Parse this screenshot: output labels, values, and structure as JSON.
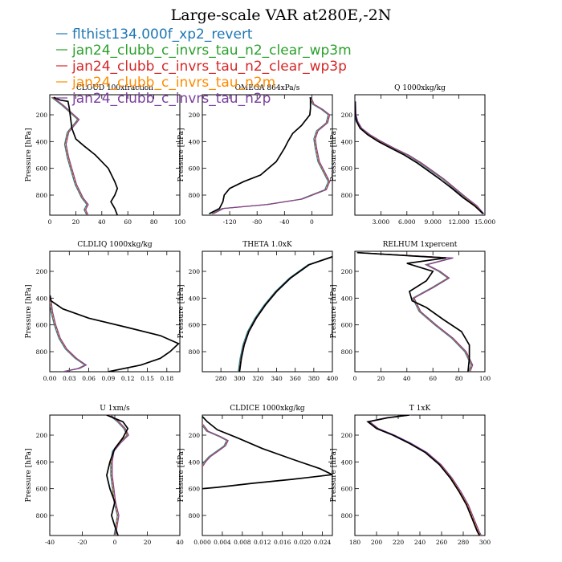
{
  "figure": {
    "title": "Large-scale VAR at280E,-2N",
    "legend": [
      {
        "name": "flthist134.000f_xp2_revert",
        "color": "#1f77b4",
        "dash": "solid"
      },
      {
        "name": "jan24_clubb_c_invrs_tau_n2_clear_wp3m",
        "color": "#2ca02c",
        "dash": "dashed"
      },
      {
        "name": "jan24_clubb_c_invrs_tau_n2_clear_wp3p",
        "color": "#d62728",
        "dash": "dashed"
      },
      {
        "name": "jan24_clubb_c_invrs_tau_n2m",
        "color": "#ff8c00",
        "dash": "solid"
      },
      {
        "name": "jan24_clubb_c_invrs_tau_n2p",
        "color": "#7b3f9e",
        "dash": "solid"
      }
    ],
    "black_series_color": "#000000"
  },
  "chart_data": [
    {
      "type": "line",
      "title": "CLOUD 100xfraction",
      "ylabel": "Pressure [hPa]",
      "xlim": [
        0,
        100
      ],
      "ylim": [
        950,
        50
      ],
      "xticks": [
        0,
        20,
        40,
        60,
        80,
        100
      ],
      "xtick_labels": [
        "0",
        "20",
        "40",
        "60",
        "80",
        "100"
      ],
      "yticks": [
        200,
        400,
        600,
        800
      ],
      "ytick_labels": [
        "200",
        "400",
        "600",
        "800"
      ],
      "black": [
        [
          3,
          70
        ],
        [
          8,
          90
        ],
        [
          14,
          100
        ],
        [
          15,
          150
        ],
        [
          17,
          300
        ],
        [
          20,
          380
        ],
        [
          26,
          430
        ],
        [
          35,
          500
        ],
        [
          45,
          600
        ],
        [
          50,
          700
        ],
        [
          52,
          750
        ],
        [
          50,
          800
        ],
        [
          47,
          850
        ],
        [
          50,
          900
        ],
        [
          52,
          950
        ]
      ],
      "colored": [
        [
          2,
          70
        ],
        [
          10,
          130
        ],
        [
          18,
          200
        ],
        [
          22,
          235
        ],
        [
          20,
          260
        ],
        [
          14,
          330
        ],
        [
          12,
          420
        ],
        [
          14,
          520
        ],
        [
          17,
          620
        ],
        [
          20,
          720
        ],
        [
          25,
          820
        ],
        [
          29,
          870
        ],
        [
          27,
          910
        ],
        [
          29,
          950
        ]
      ]
    },
    {
      "type": "line",
      "title": "OMEGA  864xPa/s",
      "ylabel": "Pressure [hPa]",
      "xlim": [
        -160,
        30
      ],
      "ylim": [
        950,
        50
      ],
      "xticks": [
        -120,
        -80,
        -40,
        0
      ],
      "xtick_labels": [
        "-120",
        "-80",
        "-40",
        "0"
      ],
      "yticks": [
        200,
        400,
        600,
        800
      ],
      "ytick_labels": [
        "200",
        "400",
        "600",
        "800"
      ],
      "black": [
        [
          -2,
          70
        ],
        [
          -2,
          150
        ],
        [
          -3,
          200
        ],
        [
          -15,
          280
        ],
        [
          -28,
          340
        ],
        [
          -35,
          400
        ],
        [
          -40,
          450
        ],
        [
          -52,
          550
        ],
        [
          -75,
          650
        ],
        [
          -100,
          700
        ],
        [
          -120,
          750
        ],
        [
          -128,
          800
        ],
        [
          -130,
          850
        ],
        [
          -135,
          900
        ],
        [
          -150,
          940
        ]
      ],
      "colored": [
        [
          -2,
          70
        ],
        [
          2,
          120
        ],
        [
          15,
          160
        ],
        [
          25,
          200
        ],
        [
          22,
          260
        ],
        [
          8,
          320
        ],
        [
          4,
          380
        ],
        [
          6,
          450
        ],
        [
          10,
          550
        ],
        [
          20,
          650
        ],
        [
          25,
          700
        ],
        [
          20,
          760
        ],
        [
          -15,
          830
        ],
        [
          -65,
          870
        ],
        [
          -130,
          900
        ],
        [
          -145,
          940
        ]
      ]
    },
    {
      "type": "line",
      "title": "Q  1000xkg/kg",
      "ylabel": "Pressure [hPa]",
      "xlim": [
        0,
        15
      ],
      "ylim": [
        950,
        50
      ],
      "xticks": [
        3,
        6,
        9,
        12,
        15
      ],
      "xtick_labels": [
        "3.000",
        "6.000",
        "9.000",
        "12.000",
        "15.000"
      ],
      "yticks": [
        200,
        400,
        600,
        800
      ],
      "ytick_labels": [
        "200",
        "400",
        "600",
        "800"
      ],
      "black": [
        [
          0.0,
          100
        ],
        [
          0.05,
          200
        ],
        [
          0.2,
          250
        ],
        [
          0.6,
          300
        ],
        [
          1.5,
          350
        ],
        [
          2.7,
          400
        ],
        [
          4.2,
          450
        ],
        [
          5.7,
          500
        ],
        [
          7.2,
          560
        ],
        [
          8.5,
          620
        ],
        [
          9.8,
          680
        ],
        [
          11.2,
          750
        ],
        [
          12.5,
          820
        ],
        [
          13.8,
          880
        ],
        [
          14.8,
          940
        ]
      ],
      "colored": [
        [
          0.0,
          100
        ],
        [
          0.05,
          200
        ],
        [
          0.25,
          250
        ],
        [
          0.7,
          300
        ],
        [
          1.7,
          350
        ],
        [
          3.0,
          400
        ],
        [
          4.5,
          450
        ],
        [
          6.1,
          500
        ],
        [
          7.6,
          560
        ],
        [
          8.9,
          620
        ],
        [
          10.2,
          680
        ],
        [
          11.5,
          750
        ],
        [
          12.8,
          820
        ],
        [
          14.0,
          880
        ],
        [
          14.8,
          940
        ]
      ]
    },
    {
      "type": "line",
      "title": "CLDLIQ  1000xkg/kg",
      "ylabel": "Pressure [hPa]",
      "xlim": [
        0,
        0.2
      ],
      "ylim": [
        950,
        50
      ],
      "xticks": [
        0.0,
        0.03,
        0.06,
        0.09,
        0.12,
        0.15,
        0.18
      ],
      "xtick_labels": [
        "0.00",
        "0.03",
        "0.06",
        "0.09",
        "0.12",
        "0.15",
        "0.18"
      ],
      "yticks": [
        200,
        400,
        600,
        800
      ],
      "ytick_labels": [
        "200",
        "400",
        "600",
        "800"
      ],
      "black": [
        [
          0,
          380
        ],
        [
          0.002,
          420
        ],
        [
          0.02,
          480
        ],
        [
          0.06,
          550
        ],
        [
          0.12,
          620
        ],
        [
          0.17,
          680
        ],
        [
          0.198,
          740
        ],
        [
          0.185,
          800
        ],
        [
          0.17,
          850
        ],
        [
          0.14,
          900
        ],
        [
          0.09,
          950
        ]
      ],
      "colored": [
        [
          0,
          380
        ],
        [
          0.003,
          500
        ],
        [
          0.008,
          600
        ],
        [
          0.015,
          700
        ],
        [
          0.025,
          780
        ],
        [
          0.04,
          850
        ],
        [
          0.055,
          900
        ],
        [
          0.045,
          925
        ],
        [
          0.02,
          950
        ]
      ]
    },
    {
      "type": "line",
      "title": "THETA  1.0xK",
      "ylabel": "Pressure [hPa]",
      "xlim": [
        260,
        400
      ],
      "ylim": [
        950,
        50
      ],
      "xticks": [
        280,
        300,
        320,
        340,
        360,
        380,
        400
      ],
      "xtick_labels": [
        "280",
        "300",
        "320",
        "340",
        "360",
        "380",
        "400"
      ],
      "yticks": [
        200,
        400,
        600,
        800
      ],
      "ytick_labels": [
        "200",
        "400",
        "600",
        "800"
      ],
      "black": [
        [
          300,
          950
        ],
        [
          302,
          850
        ],
        [
          305,
          750
        ],
        [
          310,
          650
        ],
        [
          318,
          550
        ],
        [
          328,
          450
        ],
        [
          340,
          350
        ],
        [
          355,
          250
        ],
        [
          375,
          150
        ],
        [
          400,
          90
        ]
      ],
      "colored": [
        [
          299.5,
          950
        ],
        [
          301.5,
          850
        ],
        [
          304.5,
          750
        ],
        [
          309.5,
          650
        ],
        [
          317.5,
          550
        ],
        [
          327.5,
          450
        ],
        [
          339.5,
          350
        ],
        [
          354.5,
          250
        ],
        [
          374.5,
          150
        ],
        [
          400,
          92
        ]
      ]
    },
    {
      "type": "line",
      "title": "RELHUM  1xpercent",
      "ylabel": "Pressure [hPa]",
      "xlim": [
        0,
        100
      ],
      "ylim": [
        950,
        50
      ],
      "xticks": [
        0,
        20,
        40,
        60,
        80,
        100
      ],
      "xtick_labels": [
        "0",
        "20",
        "40",
        "60",
        "80",
        "100"
      ],
      "yticks": [
        200,
        400,
        600,
        800
      ],
      "ytick_labels": [
        "200",
        "400",
        "600",
        "800"
      ],
      "black": [
        [
          2,
          60
        ],
        [
          70,
          100
        ],
        [
          40,
          140
        ],
        [
          60,
          200
        ],
        [
          55,
          270
        ],
        [
          42,
          350
        ],
        [
          44,
          420
        ],
        [
          55,
          470
        ],
        [
          68,
          560
        ],
        [
          82,
          650
        ],
        [
          88,
          750
        ],
        [
          88,
          850
        ],
        [
          87,
          950
        ]
      ],
      "colored": [
        [
          2,
          60
        ],
        [
          75,
          100
        ],
        [
          55,
          150
        ],
        [
          65,
          200
        ],
        [
          72,
          250
        ],
        [
          60,
          320
        ],
        [
          45,
          400
        ],
        [
          50,
          500
        ],
        [
          62,
          600
        ],
        [
          75,
          700
        ],
        [
          85,
          800
        ],
        [
          90,
          900
        ],
        [
          88,
          950
        ]
      ]
    },
    {
      "type": "line",
      "title": "U  1xm/s",
      "ylabel": "Pressure [hPa]",
      "xlim": [
        -40,
        40
      ],
      "ylim": [
        950,
        50
      ],
      "xticks": [
        -40,
        -20,
        0,
        20,
        40
      ],
      "xtick_labels": [
        "-40",
        "-20",
        "0",
        "20",
        "40"
      ],
      "yticks": [
        200,
        400,
        600,
        800
      ],
      "ytick_labels": [
        "200",
        "400",
        "600",
        "800"
      ],
      "black": [
        [
          -5,
          50
        ],
        [
          5,
          100
        ],
        [
          8,
          150
        ],
        [
          5,
          220
        ],
        [
          0,
          300
        ],
        [
          -3,
          400
        ],
        [
          -5,
          500
        ],
        [
          -3,
          600
        ],
        [
          0,
          700
        ],
        [
          -2,
          800
        ],
        [
          0,
          880
        ],
        [
          2,
          950
        ]
      ],
      "colored": [
        [
          -3,
          50
        ],
        [
          2,
          100
        ],
        [
          6,
          150
        ],
        [
          8,
          200
        ],
        [
          3,
          260
        ],
        [
          -1,
          320
        ],
        [
          -2,
          400
        ],
        [
          -2,
          500
        ],
        [
          -1,
          600
        ],
        [
          0,
          700
        ],
        [
          2,
          800
        ],
        [
          1,
          880
        ],
        [
          0,
          950
        ]
      ]
    },
    {
      "type": "line",
      "title": "CLDICE  1000xkg/kg",
      "ylabel": "Pressure [hPa]",
      "xlim": [
        0,
        0.026
      ],
      "ylim": [
        950,
        50
      ],
      "xticks": [
        0.0,
        0.004,
        0.008,
        0.012,
        0.016,
        0.02,
        0.024
      ],
      "xtick_labels": [
        "0.000",
        "0.004",
        "0.008",
        "0.012",
        "0.016",
        "0.020",
        "0.024"
      ],
      "yticks": [
        200,
        400,
        600,
        800
      ],
      "ytick_labels": [
        "200",
        "400",
        "600",
        "800"
      ],
      "black": [
        [
          0,
          60
        ],
        [
          0.001,
          100
        ],
        [
          0.003,
          160
        ],
        [
          0.007,
          220
        ],
        [
          0.012,
          300
        ],
        [
          0.018,
          380
        ],
        [
          0.0235,
          450
        ],
        [
          0.026,
          495
        ],
        [
          0.018,
          530
        ],
        [
          0.01,
          560
        ],
        [
          0.003,
          590
        ],
        [
          0,
          600
        ]
      ],
      "colored": [
        [
          0,
          120
        ],
        [
          0.001,
          170
        ],
        [
          0.0035,
          210
        ],
        [
          0.005,
          240
        ],
        [
          0.0045,
          280
        ],
        [
          0.003,
          320
        ],
        [
          0.0015,
          360
        ],
        [
          0.0005,
          400
        ],
        [
          0,
          430
        ]
      ]
    },
    {
      "type": "line",
      "title": "T  1xK",
      "ylabel": "Pressure [hPa]",
      "xlim": [
        180,
        300
      ],
      "ylim": [
        950,
        50
      ],
      "xticks": [
        180,
        200,
        220,
        240,
        260,
        280,
        300
      ],
      "xtick_labels": [
        "180",
        "200",
        "220",
        "240",
        "260",
        "280",
        "300"
      ],
      "yticks": [
        200,
        400,
        600,
        800
      ],
      "ytick_labels": [
        "200",
        "400",
        "600",
        "800"
      ],
      "black": [
        [
          230,
          50
        ],
        [
          210,
          70
        ],
        [
          192,
          100
        ],
        [
          200,
          150
        ],
        [
          215,
          200
        ],
        [
          230,
          260
        ],
        [
          245,
          330
        ],
        [
          258,
          420
        ],
        [
          268,
          520
        ],
        [
          276,
          620
        ],
        [
          283,
          720
        ],
        [
          288,
          820
        ],
        [
          293,
          920
        ],
        [
          295,
          950
        ]
      ],
      "colored": [
        [
          231,
          50
        ],
        [
          211,
          70
        ],
        [
          193,
          100
        ],
        [
          201,
          150
        ],
        [
          216,
          200
        ],
        [
          231,
          260
        ],
        [
          246,
          330
        ],
        [
          259,
          420
        ],
        [
          269,
          520
        ],
        [
          277,
          620
        ],
        [
          284,
          720
        ],
        [
          289,
          820
        ],
        [
          294,
          920
        ],
        [
          296,
          950
        ]
      ]
    }
  ]
}
